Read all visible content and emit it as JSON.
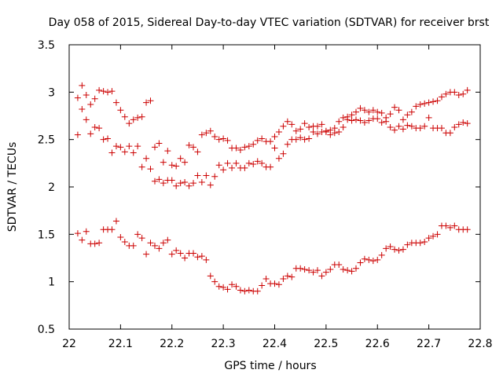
{
  "chart_data": {
    "type": "scatter",
    "title": "Day 058 of 2015, Sidereal Day-to-day VTEC variation (SDTVAR) for receiver brst",
    "xlabel": "GPS time / hours",
    "ylabel": "SDTVAR / TECUs",
    "xlim": [
      22,
      22.8
    ],
    "ylim": [
      0.5,
      3.5
    ],
    "xticks": [
      22,
      22.1,
      22.2,
      22.3,
      22.4,
      22.5,
      22.6,
      22.7,
      22.8
    ],
    "yticks": [
      0.5,
      1,
      1.5,
      2,
      2.5,
      3,
      3.5
    ],
    "xtick_labels": [
      "22",
      "22.1",
      "22.2",
      "22.3",
      "22.4",
      "22.5",
      "22.6",
      "22.7",
      "22.8"
    ],
    "ytick_labels": [
      "0.5",
      "1",
      "1.5",
      "2",
      "2.5",
      "3",
      "3.5"
    ],
    "grid": false,
    "marker": "+",
    "series": [
      {
        "name": "series-1",
        "color": "#cc0000",
        "x": [
          22.0167,
          22.025,
          22.0333,
          22.0417,
          22.05,
          22.0583,
          22.0667,
          22.075,
          22.0833,
          22.0917,
          22.1,
          22.1083,
          22.1167,
          22.125,
          22.1333,
          22.1417,
          22.15,
          22.1583,
          22.1667,
          22.175,
          22.1833,
          22.1917,
          22.2,
          22.2083,
          22.2167,
          22.225,
          22.2333,
          22.2417,
          22.25,
          22.2583,
          22.2667,
          22.275,
          22.2833,
          22.2917,
          22.3,
          22.3083,
          22.3167,
          22.325,
          22.3333,
          22.3417,
          22.35,
          22.3583,
          22.3667,
          22.375,
          22.3833,
          22.3917,
          22.4,
          22.4083,
          22.4167,
          22.425,
          22.4333,
          22.4417,
          22.45,
          22.4583,
          22.4667,
          22.475,
          22.4833,
          22.4917,
          22.5,
          22.5083,
          22.5167,
          22.525,
          22.5333,
          22.5417,
          22.55,
          22.5583,
          22.5667,
          22.575,
          22.5833,
          22.5917,
          22.6,
          22.6083,
          22.6167,
          22.625,
          22.6333,
          22.6417,
          22.65,
          22.6583,
          22.6667,
          22.675,
          22.6833,
          22.6917,
          22.7,
          22.7083,
          22.7167,
          22.725,
          22.7333,
          22.7417,
          22.75,
          22.7583,
          22.7667,
          22.775
        ],
        "y": [
          1.51,
          1.44,
          1.53,
          1.4,
          1.4,
          1.41,
          1.55,
          1.55,
          1.55,
          1.64,
          1.47,
          1.42,
          1.38,
          1.38,
          1.5,
          1.46,
          1.29,
          1.41,
          1.38,
          1.35,
          1.41,
          1.44,
          1.29,
          1.33,
          1.3,
          1.25,
          1.3,
          1.3,
          1.26,
          1.27,
          1.23,
          1.06,
          1.0,
          0.95,
          0.94,
          0.92,
          0.97,
          0.95,
          0.91,
          0.9,
          0.91,
          0.9,
          0.9,
          0.96,
          1.03,
          0.98,
          0.98,
          0.97,
          1.03,
          1.06,
          1.05,
          1.14,
          1.14,
          1.13,
          1.12,
          1.1,
          1.12,
          1.06,
          1.1,
          1.13,
          1.18,
          1.18,
          1.13,
          1.12,
          1.11,
          1.14,
          1.2,
          1.24,
          1.23,
          1.22,
          1.23,
          1.28,
          1.35,
          1.37,
          1.34,
          1.33,
          1.34,
          1.39,
          1.41,
          1.41,
          1.41,
          1.42,
          1.46,
          1.48,
          1.5,
          1.59,
          1.59,
          1.57,
          1.59,
          1.55,
          1.55,
          1.55
        ]
      },
      {
        "name": "series-2",
        "color": "#cc0000",
        "x": [
          22.0167,
          22.025,
          22.0333,
          22.0417,
          22.05,
          22.0583,
          22.0667,
          22.075,
          22.0833,
          22.0917,
          22.1,
          22.1083,
          22.1167,
          22.125,
          22.1333,
          22.1417,
          22.15,
          22.1583,
          22.1667,
          22.175,
          22.1833,
          22.1917,
          22.2,
          22.2083,
          22.2167,
          22.225,
          22.2333,
          22.2417,
          22.25,
          22.2583,
          22.2667,
          22.275,
          22.2833,
          22.2917,
          22.3,
          22.3083,
          22.3167,
          22.325,
          22.3333,
          22.3417,
          22.35,
          22.3583,
          22.3667,
          22.375,
          22.3833,
          22.3917,
          22.4,
          22.4083,
          22.4167,
          22.425,
          22.4333,
          22.4417,
          22.45,
          22.4583,
          22.4667,
          22.475,
          22.4833,
          22.4917,
          22.5,
          22.5083,
          22.5167,
          22.525,
          22.5333,
          22.5417,
          22.55,
          22.5583,
          22.5667,
          22.575,
          22.5833,
          22.5917,
          22.6,
          22.6083,
          22.6167,
          22.625,
          22.6333,
          22.6417,
          22.65,
          22.6583,
          22.6667,
          22.675,
          22.6833,
          22.6917,
          22.7,
          22.7083,
          22.7167,
          22.725,
          22.7333,
          22.7417,
          22.75,
          22.7583,
          22.7667,
          22.775
        ],
        "y": [
          2.94,
          3.07,
          2.97,
          2.87,
          2.93,
          3.02,
          3.01,
          3.0,
          3.01,
          2.89,
          2.81,
          2.74,
          2.67,
          2.71,
          2.73,
          2.74,
          2.89,
          2.91,
          2.42,
          2.46,
          2.26,
          2.38,
          2.23,
          2.22,
          2.3,
          2.26,
          2.44,
          2.42,
          2.37,
          2.55,
          2.57,
          2.59,
          2.53,
          2.5,
          2.51,
          2.49,
          2.41,
          2.41,
          2.39,
          2.42,
          2.43,
          2.45,
          2.49,
          2.51,
          2.48,
          2.48,
          2.53,
          2.58,
          2.64,
          2.69,
          2.66,
          2.59,
          2.61,
          2.67,
          2.63,
          2.64,
          2.64,
          2.66,
          2.59,
          2.6,
          2.62,
          2.69,
          2.73,
          2.74,
          2.76,
          2.79,
          2.83,
          2.81,
          2.79,
          2.81,
          2.79,
          2.78,
          2.73,
          2.77,
          2.84,
          2.81,
          2.71,
          2.76,
          2.79,
          2.85,
          2.87,
          2.88,
          2.89,
          2.9,
          2.91,
          2.95,
          2.98,
          3.0,
          3.0,
          2.97,
          2.98,
          3.02
        ]
      },
      {
        "name": "series-3",
        "color": "#cc0000",
        "x": [
          22.0167,
          22.025,
          22.0333,
          22.0417,
          22.05,
          22.0583,
          22.0667,
          22.075,
          22.0833,
          22.0917,
          22.1,
          22.1083,
          22.1167,
          22.125,
          22.1333,
          22.1417,
          22.15,
          22.1583,
          22.1667,
          22.175,
          22.1833,
          22.1917,
          22.2,
          22.2083,
          22.2167,
          22.225,
          22.2333,
          22.2417,
          22.25,
          22.2583,
          22.2667,
          22.275,
          22.2833,
          22.2917,
          22.3,
          22.3083,
          22.3167,
          22.325,
          22.3333,
          22.3417,
          22.35,
          22.3583,
          22.3667,
          22.375,
          22.3833,
          22.3917,
          22.4,
          22.4083,
          22.4167,
          22.425,
          22.4333,
          22.4417,
          22.45,
          22.4583,
          22.4667,
          22.475,
          22.4833,
          22.4917,
          22.5,
          22.5083,
          22.5167,
          22.525,
          22.5333,
          22.5417,
          22.55,
          22.5583,
          22.5667,
          22.575,
          22.5833,
          22.5917,
          22.6,
          22.6083,
          22.6167,
          22.625,
          22.6333,
          22.6417,
          22.65,
          22.6583,
          22.6667,
          22.675,
          22.6833,
          22.6917,
          22.7,
          22.7083,
          22.7167,
          22.725,
          22.7333,
          22.7417,
          22.75,
          22.7583,
          22.7667,
          22.775
        ],
        "y": [
          2.55,
          2.82,
          2.71,
          2.56,
          2.63,
          2.62,
          2.5,
          2.51,
          2.36,
          2.43,
          2.42,
          2.37,
          2.43,
          2.36,
          2.43,
          2.21,
          2.3,
          2.19,
          2.06,
          2.08,
          2.04,
          2.07,
          2.07,
          2.01,
          2.04,
          2.05,
          2.01,
          2.04,
          2.12,
          2.05,
          2.12,
          2.02,
          2.11,
          2.23,
          2.18,
          2.25,
          2.2,
          2.25,
          2.2,
          2.2,
          2.25,
          2.24,
          2.27,
          2.25,
          2.21,
          2.21,
          2.41,
          2.3,
          2.35,
          2.45,
          2.5,
          2.5,
          2.52,
          2.5,
          2.51,
          2.58,
          2.56,
          2.58,
          2.58,
          2.55,
          2.57,
          2.58,
          2.63,
          2.71,
          2.7,
          2.71,
          2.7,
          2.68,
          2.7,
          2.72,
          2.72,
          2.68,
          2.69,
          2.63,
          2.6,
          2.64,
          2.61,
          2.65,
          2.64,
          2.62,
          2.62,
          2.64,
          2.73,
          2.62,
          2.62,
          2.62,
          2.57,
          2.57,
          2.63,
          2.66,
          2.68,
          2.67
        ]
      }
    ]
  }
}
